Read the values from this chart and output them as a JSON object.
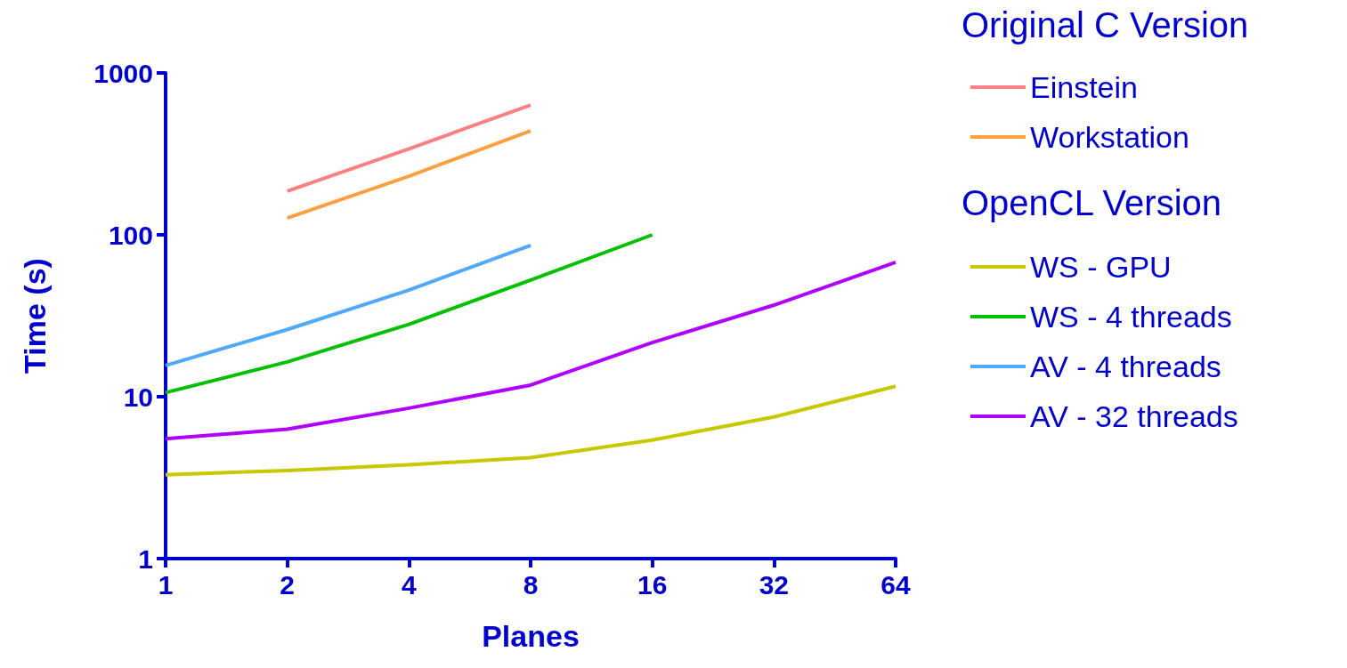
{
  "chart_data": {
    "type": "line",
    "xlabel": "Planes",
    "ylabel": "Time (s)",
    "log": "xy",
    "xlim": [
      1,
      64
    ],
    "xticks": [
      1,
      2,
      4,
      8,
      16,
      32,
      64
    ],
    "ylim": [
      1,
      1000
    ],
    "yticks": [
      1,
      10,
      100,
      1000
    ],
    "grid": false,
    "legend": "right",
    "marker": "none",
    "line_style": "solid",
    "annotations": [
      "Original C Version",
      "OpenCL Version"
    ],
    "series": [
      {
        "name": "Einstein",
        "color": "#ff8080",
        "x": [
          2,
          4,
          8
        ],
        "values": [
          186,
          340,
          634
        ]
      },
      {
        "name": "Workstation",
        "color": "#ffa040",
        "x": [
          2,
          4,
          8
        ],
        "values": [
          127,
          230,
          439
        ]
      },
      {
        "name": "WS - GPU",
        "color": "#c8c800",
        "x": [
          1,
          2,
          4,
          8,
          16,
          32,
          64
        ],
        "values": [
          3.3,
          3.5,
          3.8,
          4.2,
          5.4,
          7.5,
          11.6
        ]
      },
      {
        "name": "WS - 4 threads",
        "color": "#00c000",
        "x": [
          1,
          2,
          4,
          8,
          16
        ],
        "values": [
          10.6,
          16.4,
          28,
          52.5,
          100
        ]
      },
      {
        "name": "AV - 4 threads",
        "color": "#50a8ff",
        "x": [
          1,
          2,
          4,
          8
        ],
        "values": [
          15.6,
          26,
          45.6,
          86
        ]
      },
      {
        "name": "AV - 32 threads",
        "color": "#b000ff",
        "x": [
          1,
          2,
          4,
          8,
          16,
          32,
          64
        ],
        "values": [
          5.5,
          6.3,
          8.5,
          11.8,
          21.6,
          36.8,
          67.6
        ]
      }
    ]
  }
}
